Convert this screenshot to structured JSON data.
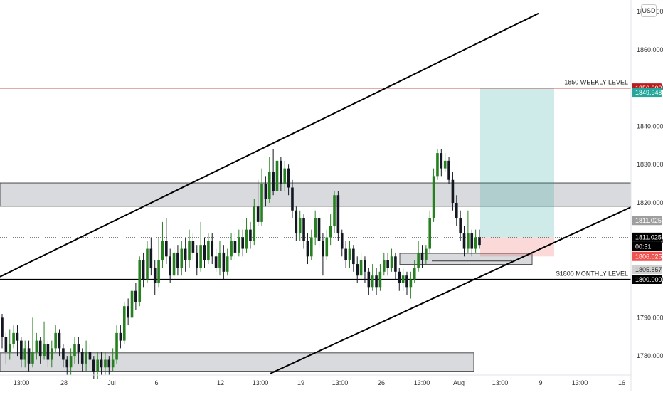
{
  "chart_data": {
    "type": "candlestick",
    "currency": "USD",
    "x_ticks": [
      "13:00",
      "28",
      "Jul",
      "6",
      "12",
      "13:00",
      "19",
      "13:00",
      "26",
      "13:00",
      "Aug",
      "13:00",
      "9",
      "13:00",
      "16"
    ],
    "y_ticks": [
      "1870.000",
      "1860.000",
      "1850.000",
      "1840.000",
      "1830.000",
      "1820.000",
      "1810.000",
      "1800.000",
      "1790.000",
      "1780.000"
    ],
    "y_range": [
      1775,
      1873
    ],
    "levels": [
      {
        "name": "1850 WEEKLY LEVEL",
        "price": 1850.0,
        "label": "1850 WEEKLY LEVEL",
        "color": "#b71c1c"
      },
      {
        "name": "$1800 MONTHLY LEVEL",
        "price": 1800.0,
        "label": "$1800 MONTHLY LEVEL",
        "color": "#000000"
      }
    ],
    "price_tags": [
      {
        "text": "1850.000",
        "price": 1850.0,
        "bg": "#b71c1c",
        "fg": "#ffffff"
      },
      {
        "text": "1849.948",
        "price": 1848.9,
        "bg": "#26a69a",
        "fg": "#ffffff"
      },
      {
        "text": "1811.025",
        "price": 1815.4,
        "bg": "#9e9e9e",
        "fg": "#ffffff"
      },
      {
        "text": "1811.025",
        "price": 1811.0,
        "bg": "#000000",
        "fg": "#ffffff"
      },
      {
        "text": "00:31",
        "price": 1808.6,
        "bg": "#000000",
        "fg": "#ffffff"
      },
      {
        "text": "1806.025",
        "price": 1806.0,
        "bg": "#ef5350",
        "fg": "#ffffff"
      },
      {
        "text": "1805.857",
        "price": 1802.6,
        "bg": "#d0d0d0",
        "fg": "#333333"
      },
      {
        "text": "1800.000",
        "price": 1800.0,
        "bg": "#000000",
        "fg": "#ffffff"
      }
    ],
    "zones": [
      {
        "name": "upper-resistance-zone",
        "price_top": 1825.2,
        "price_bottom": 1819.1
      },
      {
        "name": "mid-demand-zone",
        "price_top": 1806.8,
        "price_bottom": 1803.9
      },
      {
        "name": "lower-demand-zone",
        "price_top": 1780.8,
        "price_bottom": 1776.0
      }
    ],
    "position": {
      "type": "long",
      "entry": 1811.0,
      "target": 1850.0,
      "stop": 1806.0
    },
    "trendlines": [
      {
        "name": "upper-channel-line",
        "points": [
          [
            0,
            1800.7
          ],
          [
            1,
            1869.5
          ]
        ]
      },
      {
        "name": "lower-channel-line",
        "points": [
          [
            0,
            1775.4
          ],
          [
            1,
            1818.9
          ]
        ]
      }
    ],
    "candles": [
      [
        1790,
        1785,
        1791,
        1782
      ],
      [
        1785,
        1781,
        1786,
        1778
      ],
      [
        1781,
        1783,
        1787,
        1779
      ],
      [
        1783,
        1786,
        1788,
        1782
      ],
      [
        1786,
        1784,
        1788,
        1780
      ],
      [
        1784,
        1779,
        1785,
        1777
      ],
      [
        1779,
        1782,
        1784,
        1777
      ],
      [
        1782,
        1778,
        1784,
        1776
      ],
      [
        1778,
        1781,
        1790,
        1777
      ],
      [
        1781,
        1784,
        1786,
        1779
      ],
      [
        1784,
        1780,
        1785,
        1778
      ],
      [
        1780,
        1783,
        1789,
        1779
      ],
      [
        1783,
        1779,
        1784,
        1777
      ],
      [
        1779,
        1782,
        1784,
        1777
      ],
      [
        1782,
        1786,
        1788,
        1781
      ],
      [
        1786,
        1782,
        1787,
        1780
      ],
      [
        1782,
        1779,
        1783,
        1777
      ],
      [
        1779,
        1777,
        1780,
        1775
      ],
      [
        1777,
        1780,
        1782,
        1775
      ],
      [
        1780,
        1783,
        1785,
        1778
      ],
      [
        1783,
        1781,
        1785,
        1778
      ],
      [
        1781,
        1778,
        1782,
        1776
      ],
      [
        1778,
        1781,
        1784,
        1776
      ],
      [
        1781,
        1779,
        1783,
        1777
      ],
      [
        1779,
        1776,
        1780,
        1774
      ],
      [
        1776,
        1779,
        1781,
        1774
      ],
      [
        1779,
        1777,
        1781,
        1775
      ],
      [
        1777,
        1779,
        1781,
        1775
      ],
      [
        1779,
        1777,
        1780,
        1775
      ],
      [
        1777,
        1779,
        1782,
        1776
      ],
      [
        1779,
        1786,
        1788,
        1778
      ],
      [
        1786,
        1784,
        1788,
        1782
      ],
      [
        1784,
        1793,
        1794,
        1783
      ],
      [
        1793,
        1790,
        1795,
        1788
      ],
      [
        1790,
        1797,
        1798,
        1789
      ],
      [
        1797,
        1794,
        1799,
        1792
      ],
      [
        1794,
        1805,
        1806,
        1793
      ],
      [
        1805,
        1800,
        1807,
        1798
      ],
      [
        1800,
        1808,
        1810,
        1799
      ],
      [
        1808,
        1803,
        1811,
        1801
      ],
      [
        1803,
        1799,
        1805,
        1796
      ],
      [
        1799,
        1805,
        1811,
        1798
      ],
      [
        1805,
        1810,
        1815,
        1803
      ],
      [
        1810,
        1806,
        1816,
        1804
      ],
      [
        1806,
        1801,
        1808,
        1799
      ],
      [
        1801,
        1807,
        1809,
        1800
      ],
      [
        1807,
        1803,
        1809,
        1801
      ],
      [
        1803,
        1808,
        1810,
        1801
      ],
      [
        1808,
        1805,
        1811,
        1802
      ],
      [
        1805,
        1810,
        1813,
        1803
      ],
      [
        1810,
        1807,
        1812,
        1805
      ],
      [
        1807,
        1803,
        1809,
        1801
      ],
      [
        1803,
        1809,
        1815,
        1802
      ],
      [
        1809,
        1805,
        1811,
        1803
      ],
      [
        1805,
        1810,
        1812,
        1804
      ],
      [
        1810,
        1806,
        1812,
        1804
      ],
      [
        1806,
        1803,
        1808,
        1802
      ],
      [
        1803,
        1807,
        1810,
        1801
      ],
      [
        1807,
        1802,
        1809,
        1800
      ],
      [
        1802,
        1806,
        1808,
        1801
      ],
      [
        1806,
        1810,
        1812,
        1805
      ],
      [
        1810,
        1807,
        1812,
        1805
      ],
      [
        1807,
        1811,
        1813,
        1806
      ],
      [
        1811,
        1808,
        1813,
        1806
      ],
      [
        1808,
        1813,
        1816,
        1807
      ],
      [
        1813,
        1810,
        1815,
        1808
      ],
      [
        1810,
        1819,
        1821,
        1809
      ],
      [
        1819,
        1815,
        1826,
        1814
      ],
      [
        1815,
        1825,
        1829,
        1814
      ],
      [
        1825,
        1821,
        1827,
        1819
      ],
      [
        1821,
        1828,
        1832,
        1820
      ],
      [
        1828,
        1823,
        1834,
        1822
      ],
      [
        1823,
        1831,
        1833,
        1822
      ],
      [
        1831,
        1825,
        1832,
        1823
      ],
      [
        1825,
        1829,
        1831,
        1823
      ],
      [
        1829,
        1824,
        1830,
        1822
      ],
      [
        1824,
        1818,
        1826,
        1816
      ],
      [
        1818,
        1812,
        1819,
        1810
      ],
      [
        1812,
        1816,
        1818,
        1810
      ],
      [
        1816,
        1810,
        1817,
        1808
      ],
      [
        1810,
        1806,
        1812,
        1804
      ],
      [
        1806,
        1811,
        1813,
        1805
      ],
      [
        1811,
        1816,
        1818,
        1809
      ],
      [
        1816,
        1810,
        1817,
        1808
      ],
      [
        1810,
        1806,
        1812,
        1801
      ],
      [
        1806,
        1811,
        1813,
        1805
      ],
      [
        1811,
        1814,
        1817,
        1809
      ],
      [
        1814,
        1822,
        1823,
        1812
      ],
      [
        1822,
        1812,
        1823,
        1810
      ],
      [
        1812,
        1808,
        1813,
        1806
      ],
      [
        1808,
        1805,
        1810,
        1803
      ],
      [
        1805,
        1808,
        1810,
        1803
      ],
      [
        1808,
        1804,
        1809,
        1802
      ],
      [
        1804,
        1801,
        1806,
        1799
      ],
      [
        1801,
        1805,
        1807,
        1800
      ],
      [
        1805,
        1802,
        1806,
        1799
      ],
      [
        1802,
        1798,
        1803,
        1796
      ],
      [
        1798,
        1801,
        1804,
        1797
      ],
      [
        1801,
        1798,
        1803,
        1796
      ],
      [
        1798,
        1802,
        1804,
        1797
      ],
      [
        1802,
        1805,
        1807,
        1801
      ],
      [
        1805,
        1803,
        1807,
        1801
      ],
      [
        1803,
        1806,
        1808,
        1802
      ],
      [
        1806,
        1802,
        1807,
        1800
      ],
      [
        1802,
        1799,
        1803,
        1797
      ],
      [
        1799,
        1801,
        1803,
        1797
      ],
      [
        1801,
        1798,
        1802,
        1796
      ],
      [
        1798,
        1800,
        1802,
        1795
      ],
      [
        1800,
        1803,
        1805,
        1799
      ],
      [
        1803,
        1807,
        1810,
        1802
      ],
      [
        1807,
        1805,
        1809,
        1803
      ],
      [
        1805,
        1808,
        1809,
        1804
      ],
      [
        1808,
        1816,
        1818,
        1807
      ],
      [
        1816,
        1827,
        1829,
        1815
      ],
      [
        1827,
        1833,
        1834,
        1826
      ],
      [
        1833,
        1829,
        1834,
        1827
      ],
      [
        1829,
        1831,
        1833,
        1828
      ],
      [
        1831,
        1826,
        1832,
        1825
      ],
      [
        1826,
        1820,
        1828,
        1818
      ],
      [
        1820,
        1816,
        1822,
        1814
      ],
      [
        1816,
        1812,
        1818,
        1810
      ],
      [
        1812,
        1808,
        1814,
        1806
      ],
      [
        1808,
        1812,
        1818,
        1807
      ],
      [
        1812,
        1808,
        1813,
        1806
      ],
      [
        1808,
        1811,
        1813,
        1807
      ],
      [
        1811,
        1809,
        1813,
        1808
      ]
    ]
  }
}
